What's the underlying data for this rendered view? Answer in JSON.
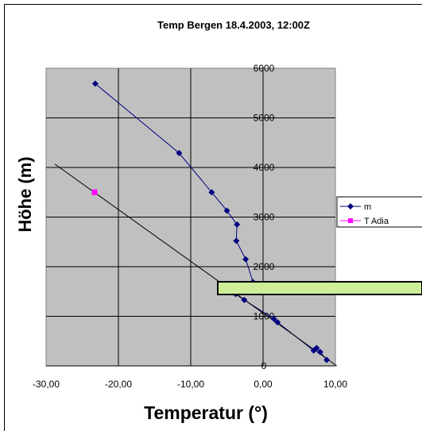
{
  "chart_data": {
    "type": "scatter",
    "title": "Temp Bergen 18.4.2003, 12:00Z",
    "xlabel": "Temperatur (°)",
    "ylabel": "Höhe (m)",
    "xlim": [
      -30,
      10
    ],
    "ylim": [
      0,
      6000
    ],
    "x_ticks": [
      "-30,00",
      "-20,00",
      "-10,00",
      "0,00",
      "10,00"
    ],
    "y_ticks": [
      "0",
      "1000",
      "2000",
      "3000",
      "4000",
      "5000",
      "6000"
    ],
    "grid": true,
    "legend_position": "right",
    "series": [
      {
        "name": "m",
        "color": "#000080",
        "marker": "diamond",
        "points": [
          [
            -23.2,
            5690
          ],
          [
            -11.6,
            4290
          ],
          [
            -7.1,
            3500
          ],
          [
            -5.0,
            3130
          ],
          [
            -3.6,
            2850
          ],
          [
            -3.7,
            2520
          ],
          [
            -2.4,
            2150
          ],
          [
            -1.4,
            1690
          ],
          [
            -2.0,
            1580
          ],
          [
            -3.8,
            1450
          ],
          [
            -2.6,
            1330
          ],
          [
            1.5,
            950
          ],
          [
            2.0,
            880
          ],
          [
            7.0,
            310
          ],
          [
            7.4,
            360
          ],
          [
            7.9,
            280
          ],
          [
            8.8,
            120
          ]
        ]
      },
      {
        "name": "T Adiabatisch",
        "color": "#ff00ff",
        "marker": "square",
        "points": [
          [
            -23.3,
            3500
          ]
        ]
      },
      {
        "name": "",
        "color": "#000000",
        "marker": "none",
        "points": [
          [
            -28.8,
            4070
          ],
          [
            10.2,
            0
          ]
        ]
      }
    ],
    "legend": [
      "m",
      "T Adia"
    ],
    "highlight_band": {
      "color": "#ccee99",
      "y_from": 1460,
      "y_to": 1720
    }
  }
}
